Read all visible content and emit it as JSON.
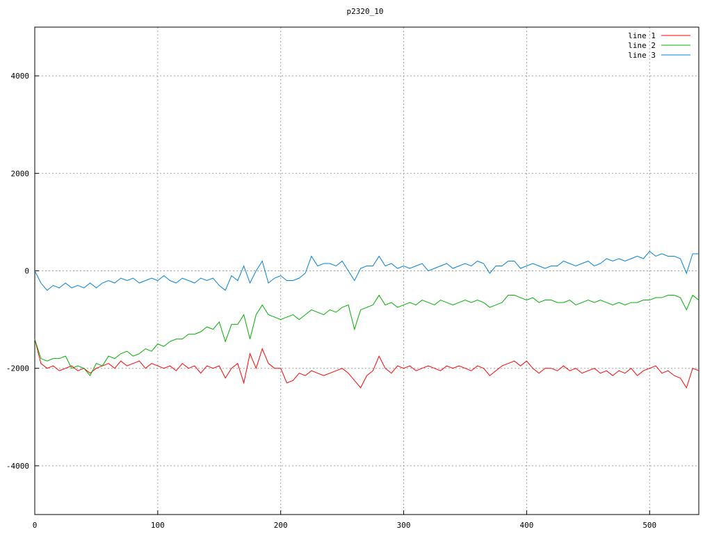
{
  "chart_data": {
    "type": "line",
    "title": "p2320_10",
    "x": [
      0,
      5,
      10,
      15,
      20,
      25,
      30,
      35,
      40,
      45,
      50,
      55,
      60,
      65,
      70,
      75,
      80,
      85,
      90,
      95,
      100,
      105,
      110,
      115,
      120,
      125,
      130,
      135,
      140,
      145,
      150,
      155,
      160,
      165,
      170,
      175,
      180,
      185,
      190,
      195,
      200,
      205,
      210,
      215,
      220,
      225,
      230,
      235,
      240,
      245,
      250,
      255,
      260,
      265,
      270,
      275,
      280,
      285,
      290,
      295,
      300,
      305,
      310,
      315,
      320,
      325,
      330,
      335,
      340,
      345,
      350,
      355,
      360,
      365,
      370,
      375,
      380,
      385,
      390,
      395,
      400,
      405,
      410,
      415,
      420,
      425,
      430,
      435,
      440,
      445,
      450,
      455,
      460,
      465,
      470,
      475,
      480,
      485,
      490,
      495,
      500,
      505,
      510,
      515,
      520,
      525,
      530,
      535,
      540
    ],
    "series": [
      {
        "name": "line 1",
        "color": "#ff0000",
        "values": [
          -1400,
          -1900,
          -2000,
          -1950,
          -2050,
          -2000,
          -1950,
          -2050,
          -2000,
          -2100,
          -2000,
          -1950,
          -1900,
          -2000,
          -1850,
          -1950,
          -1900,
          -1850,
          -2000,
          -1900,
          -1950,
          -2000,
          -1950,
          -2050,
          -1900,
          -2000,
          -1950,
          -2100,
          -1950,
          -2000,
          -1950,
          -2200,
          -2000,
          -1900,
          -2300,
          -1700,
          -2000,
          -1600,
          -1900,
          -2000,
          -2000,
          -2300,
          -2250,
          -2100,
          -2150,
          -2050,
          -2100,
          -2150,
          -2100,
          -2050,
          -2000,
          -2100,
          -2250,
          -2400,
          -2150,
          -2050,
          -1750,
          -2000,
          -2100,
          -1950,
          -2000,
          -1950,
          -2050,
          -2000,
          -1950,
          -2000,
          -2050,
          -1950,
          -2000,
          -1950,
          -2000,
          -2050,
          -1950,
          -2000,
          -2150,
          -2050,
          -1950,
          -1900,
          -1850,
          -1950,
          -1850,
          -2000,
          -2100,
          -2000,
          -2000,
          -2050,
          -1950,
          -2050,
          -2000,
          -2100,
          -2050,
          -2000,
          -2100,
          -2050,
          -2150,
          -2050,
          -2100,
          -2000,
          -2150,
          -2050,
          -2000,
          -1950,
          -2100,
          -2050,
          -2150,
          -2200,
          -2400,
          -2000,
          -2050
        ]
      },
      {
        "name": "line 2",
        "color": "#00b000",
        "values": [
          -1400,
          -1800,
          -1850,
          -1800,
          -1800,
          -1750,
          -2000,
          -1950,
          -2000,
          -2150,
          -1900,
          -1950,
          -1750,
          -1800,
          -1700,
          -1650,
          -1750,
          -1700,
          -1600,
          -1650,
          -1500,
          -1550,
          -1450,
          -1400,
          -1400,
          -1300,
          -1300,
          -1250,
          -1150,
          -1200,
          -1050,
          -1450,
          -1100,
          -1100,
          -900,
          -1400,
          -900,
          -700,
          -900,
          -950,
          -1000,
          -950,
          -900,
          -1000,
          -900,
          -800,
          -850,
          -900,
          -800,
          -850,
          -750,
          -700,
          -1200,
          -800,
          -750,
          -700,
          -500,
          -700,
          -650,
          -750,
          -700,
          -650,
          -700,
          -600,
          -650,
          -700,
          -600,
          -650,
          -700,
          -650,
          -600,
          -650,
          -600,
          -650,
          -750,
          -700,
          -650,
          -500,
          -500,
          -550,
          -600,
          -550,
          -650,
          -600,
          -600,
          -650,
          -650,
          -600,
          -700,
          -650,
          -600,
          -650,
          -600,
          -650,
          -700,
          -650,
          -700,
          -650,
          -650,
          -600,
          -600,
          -550,
          -550,
          -500,
          -500,
          -550,
          -800,
          -500,
          -600
        ]
      },
      {
        "name": "line 3",
        "color": "#0080e0",
        "values": [
          0,
          -250,
          -400,
          -300,
          -350,
          -250,
          -350,
          -300,
          -350,
          -250,
          -350,
          -250,
          -200,
          -250,
          -150,
          -200,
          -150,
          -250,
          -200,
          -150,
          -200,
          -100,
          -200,
          -250,
          -150,
          -200,
          -250,
          -150,
          -200,
          -150,
          -300,
          -400,
          -100,
          -200,
          100,
          -250,
          0,
          200,
          -250,
          -150,
          -100,
          -200,
          -200,
          -150,
          -50,
          300,
          100,
          150,
          150,
          100,
          200,
          0,
          -200,
          50,
          100,
          100,
          300,
          100,
          150,
          50,
          100,
          50,
          100,
          150,
          0,
          50,
          100,
          150,
          50,
          100,
          150,
          100,
          200,
          150,
          -50,
          100,
          100,
          200,
          200,
          50,
          100,
          150,
          100,
          50,
          100,
          100,
          200,
          150,
          100,
          150,
          200,
          100,
          150,
          250,
          200,
          250,
          200,
          250,
          300,
          250,
          400,
          300,
          350,
          300,
          300,
          250,
          -50,
          350,
          350
        ]
      }
    ],
    "xlim": [
      0,
      540
    ],
    "ylim": [
      -5000,
      5000
    ],
    "xticks": [
      0,
      100,
      200,
      300,
      400,
      500
    ],
    "yticks": [
      -4000,
      -2000,
      0,
      2000,
      4000
    ],
    "grid": true,
    "legend": "top right"
  }
}
